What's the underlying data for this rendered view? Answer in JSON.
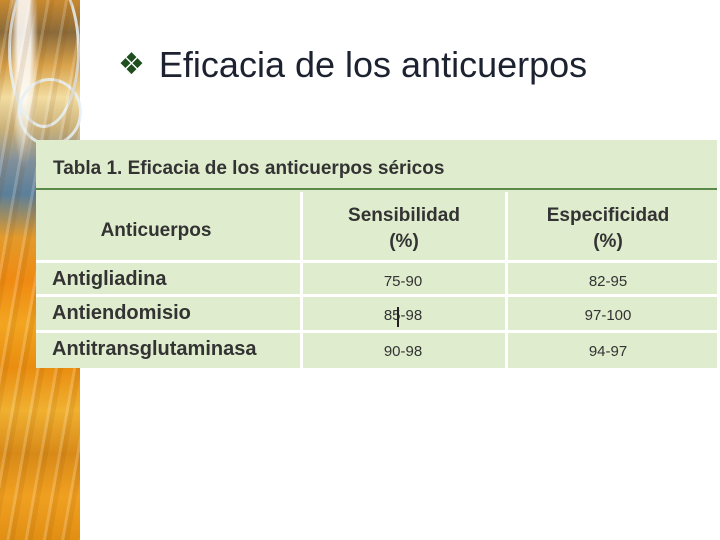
{
  "slide": {
    "bullet_icon": "❖",
    "title": "Eficacia de los anticuerpos"
  },
  "table": {
    "caption": "Tabla 1. Eficacia de los anticuerpos séricos",
    "headers": {
      "col1": "Anticuerpos",
      "col2_line1": "Sensibilidad",
      "col2_line2": "(%)",
      "col3_line1": "Especificidad",
      "col3_line2": "(%)"
    },
    "rows": [
      {
        "name": "Antigliadina",
        "sensibilidad": "75-90",
        "especificidad": "82-95"
      },
      {
        "name": "Antiendomisio",
        "sensibilidad": "85-98",
        "especificidad": "97-100"
      },
      {
        "name": "Antitransglutaminasa",
        "sensibilidad": "90-98",
        "especificidad": "94-97"
      }
    ]
  },
  "colors": {
    "panel_bg": "#dfeccd",
    "title_text": "#1c2230",
    "bullet": "#1f4e1f"
  },
  "icons": {
    "bullet": "diamond-bullet-icon",
    "decoration": "wheat-photo-strip"
  }
}
